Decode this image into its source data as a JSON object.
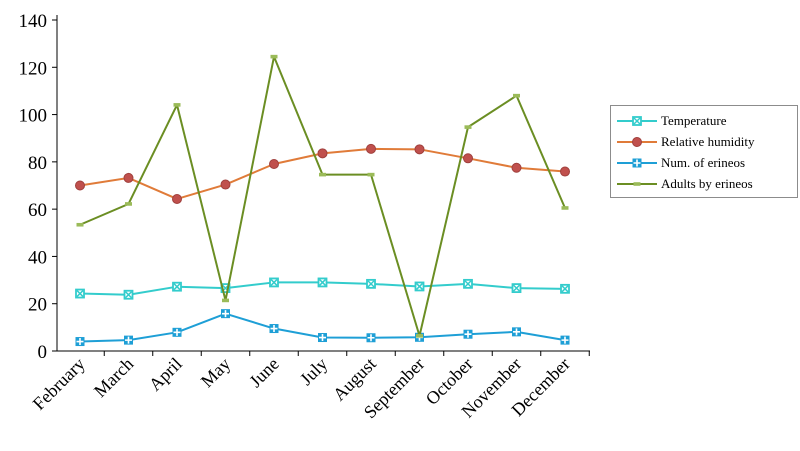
{
  "chart_data": {
    "type": "line",
    "categories": [
      "February",
      "March",
      "April",
      "May",
      "June",
      "July",
      "August",
      "September",
      "October",
      "November",
      "December"
    ],
    "ylim": [
      0,
      140
    ],
    "yticks": [
      0,
      20,
      40,
      60,
      80,
      100,
      120,
      140
    ],
    "grid": false,
    "legend_position": "right",
    "series": [
      {
        "name": "Temperature",
        "color": "#33cccc",
        "marker": "x-square",
        "values": [
          24.3,
          23.8,
          27.2,
          26.6,
          29.0,
          29.0,
          28.4,
          27.3,
          28.4,
          26.6,
          26.3
        ]
      },
      {
        "name": "Relative humidity",
        "color": "#e07b39",
        "marker": "circle",
        "values": [
          70.0,
          73.2,
          64.3,
          70.4,
          79.1,
          83.6,
          85.5,
          85.3,
          81.5,
          77.5,
          75.9
        ]
      },
      {
        "name": "Num. of erineos",
        "color": "#1e9fd6",
        "marker": "plus-square",
        "values": [
          4.0,
          4.6,
          7.9,
          15.8,
          9.5,
          5.7,
          5.6,
          5.8,
          7.1,
          8.1,
          4.6
        ]
      },
      {
        "name": "Adults by erineos",
        "color": "#6b8e23",
        "marker": "dash",
        "values": [
          53.4,
          62.2,
          104.1,
          21.4,
          124.5,
          74.6,
          74.6,
          6.4,
          94.7,
          108.0,
          60.5
        ]
      }
    ]
  }
}
